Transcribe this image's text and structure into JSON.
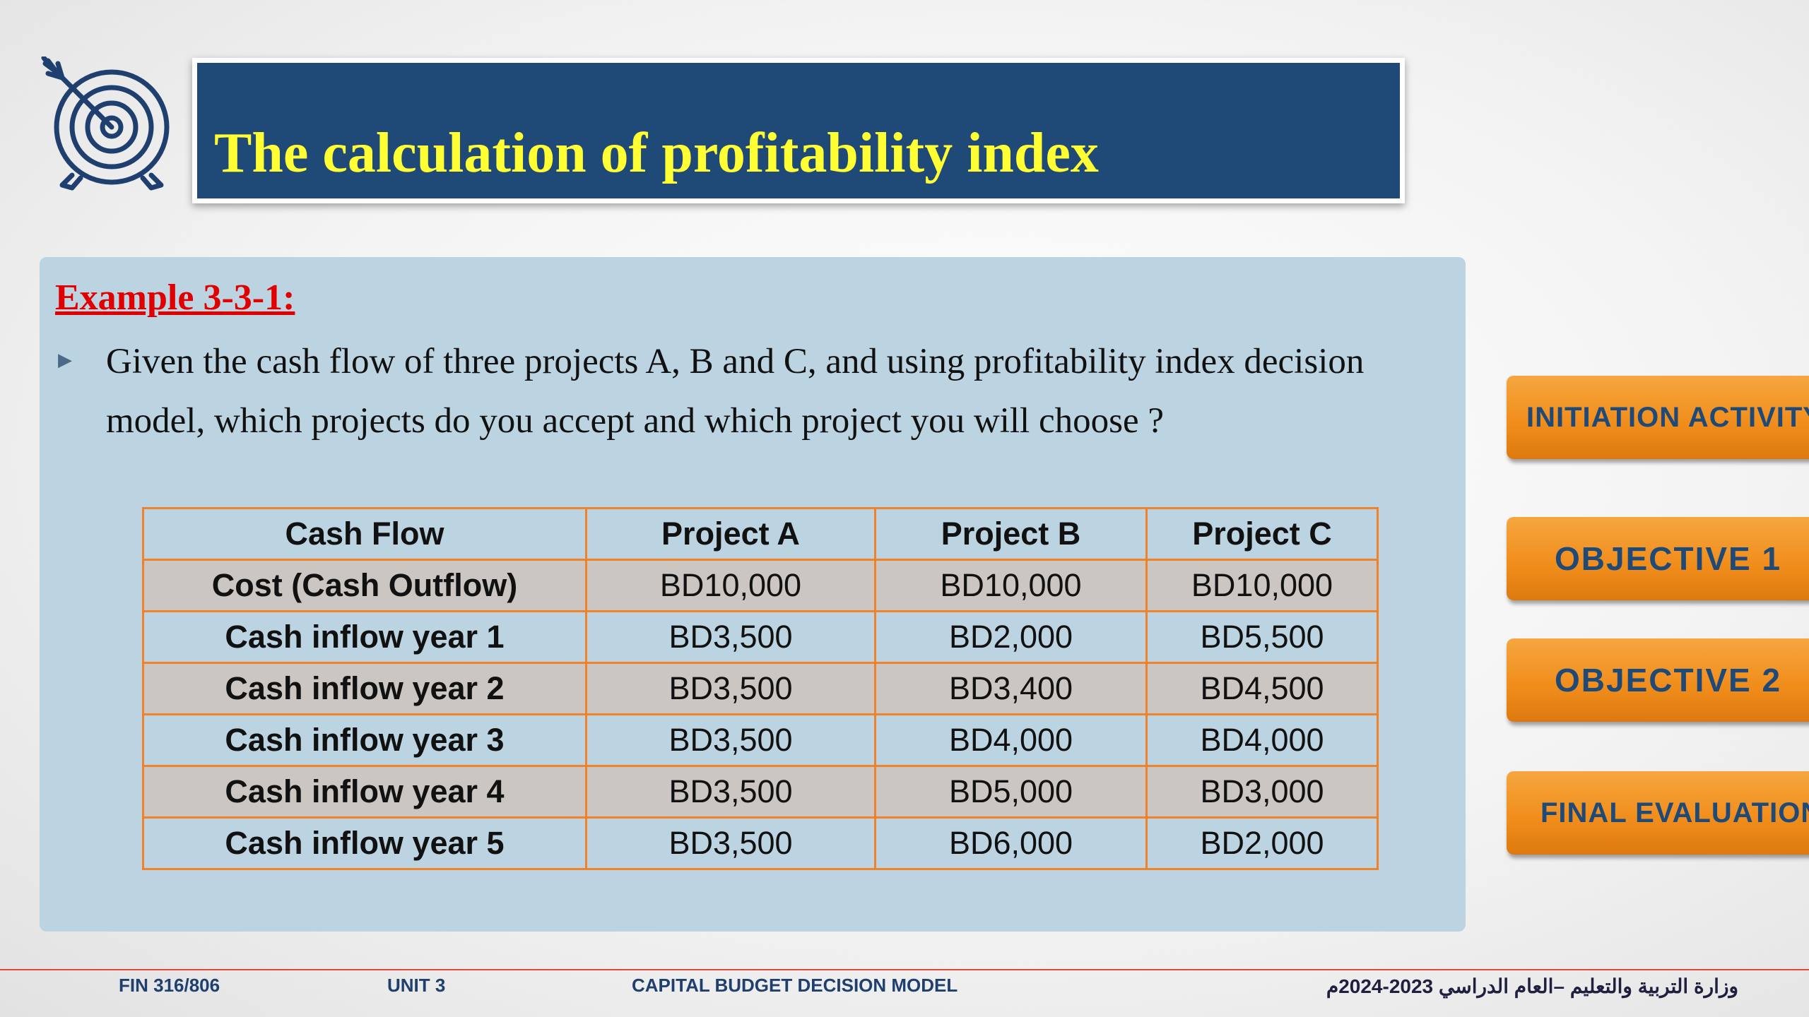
{
  "slide": {
    "title": "The calculation of profitability index"
  },
  "content": {
    "example_heading": "Example 3-3-1:",
    "bullet": "Given the cash flow of three projects A, B and C, and using profitability index decision model, which projects do you accept and which project  you will choose ?"
  },
  "table": {
    "headers": [
      "Cash Flow",
      "Project A",
      "Project B",
      "Project C"
    ],
    "rows": [
      [
        "Cost (Cash Outflow)",
        "BD10,000",
        "BD10,000",
        "BD10,000"
      ],
      [
        "Cash inflow year 1",
        "BD3,500",
        "BD2,000",
        "BD5,500"
      ],
      [
        "Cash inflow year 2",
        "BD3,500",
        "BD3,400",
        "BD4,500"
      ],
      [
        "Cash inflow year 3",
        "BD3,500",
        "BD4,000",
        "BD4,000"
      ],
      [
        "Cash inflow year 4",
        "BD3,500",
        "BD5,000",
        "BD3,000"
      ],
      [
        "Cash inflow year 5",
        "BD3,500",
        "BD6,000",
        "BD2,000"
      ]
    ]
  },
  "nav": {
    "initiation": "INITIATION ACTIVITY",
    "objective1": "OBJECTIVE 1",
    "objective2": "OBJECTIVE 2",
    "final": "FINAL EVALUATION"
  },
  "footer": {
    "course": "FIN 316/806",
    "unit": "UNIT 3",
    "topic": "CAPITAL BUDGET DECISION MODEL",
    "ministry": "وزارة التربية والتعليم –العام الدراسي 2023-2024م"
  },
  "colors": {
    "title_bg": "#1f4a78",
    "title_text": "#ffff33",
    "panel_bg": "#bcd4e2",
    "table_border": "#f0822a",
    "row_alt": "#cbc6c1",
    "button_orange": "#f08c1a",
    "heading_red": "#e00000"
  },
  "icons": {
    "target": "target-icon",
    "bullet": "triangle-right-icon"
  }
}
